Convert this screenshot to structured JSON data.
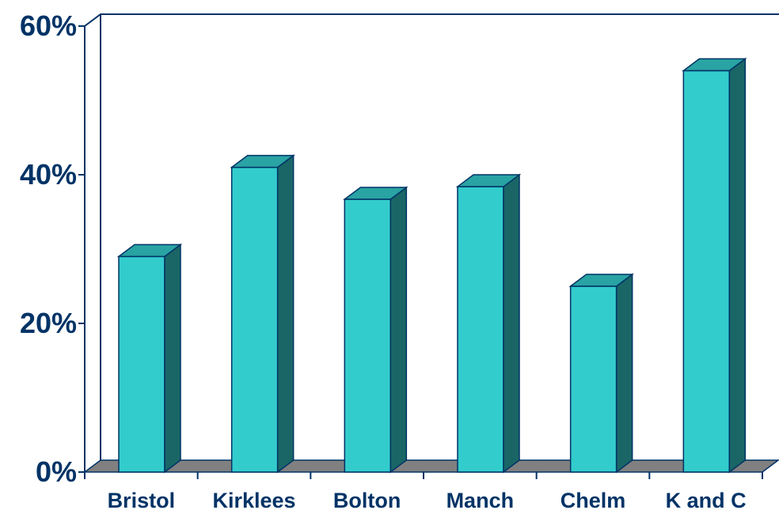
{
  "chart_data": {
    "type": "bar",
    "categories": [
      "Bristol",
      "Kirklees",
      "Bolton",
      "Manch",
      "Chelm",
      "K and C"
    ],
    "values": [
      29,
      41,
      36.7,
      38.4,
      25,
      54
    ],
    "title": "",
    "xlabel": "",
    "ylabel": "",
    "ylim": [
      0,
      60
    ],
    "yticks": [
      "0%",
      "20%",
      "40%",
      "60%"
    ],
    "ytick_values": [
      0,
      20,
      40,
      60
    ],
    "grid": false,
    "style": "3d-column",
    "colors": {
      "bar_front": "#33CCCC",
      "bar_side": "#1A6666",
      "bar_top": "#29A3A3",
      "floor": "#808080",
      "axis": "#003366",
      "text": "#003366"
    }
  }
}
